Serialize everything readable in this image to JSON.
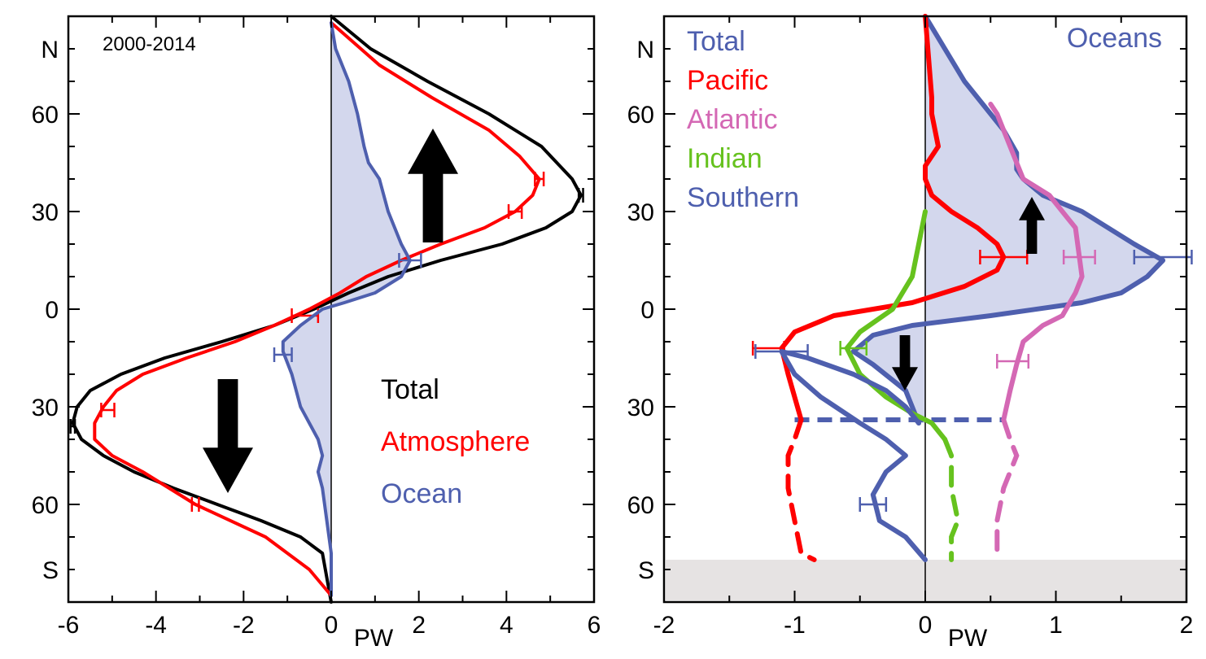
{
  "chart_data": [
    {
      "type": "line",
      "title": "",
      "annotation": "2000-2014",
      "xlabel": "PW",
      "ylabel": "",
      "xlim": [
        -6,
        6
      ],
      "ylim": [
        -90,
        90
      ],
      "x_ticks": [
        -6,
        -4,
        -2,
        0,
        2,
        4,
        6
      ],
      "y_ticks": [
        {
          "value": 80,
          "label": "N"
        },
        {
          "value": 60,
          "label": "60"
        },
        {
          "value": 30,
          "label": "30"
        },
        {
          "value": 0,
          "label": "0"
        },
        {
          "value": -30,
          "label": "30"
        },
        {
          "value": -60,
          "label": "60"
        },
        {
          "value": -80,
          "label": "S"
        }
      ],
      "legend_position": "lower-right",
      "series": [
        {
          "name": "Total",
          "color": "#000000",
          "points": [
            [
              0,
              90
            ],
            [
              0.9,
              80
            ],
            [
              2.2,
              70
            ],
            [
              3.6,
              60
            ],
            [
              4.8,
              50
            ],
            [
              5.5,
              40
            ],
            [
              5.7,
              35
            ],
            [
              5.5,
              30
            ],
            [
              4.9,
              25
            ],
            [
              3.9,
              20
            ],
            [
              2.5,
              15
            ],
            [
              1.3,
              10
            ],
            [
              0.4,
              5
            ],
            [
              -0.4,
              0
            ],
            [
              -1.3,
              -5
            ],
            [
              -2.5,
              -10
            ],
            [
              -3.8,
              -15
            ],
            [
              -4.8,
              -20
            ],
            [
              -5.5,
              -25
            ],
            [
              -5.8,
              -30
            ],
            [
              -5.9,
              -35
            ],
            [
              -5.7,
              -40
            ],
            [
              -5.2,
              -45
            ],
            [
              -4.5,
              -50
            ],
            [
              -3.6,
              -55
            ],
            [
              -2.6,
              -60
            ],
            [
              -1.6,
              -65
            ],
            [
              -0.7,
              -70
            ],
            [
              -0.2,
              -75
            ],
            [
              0,
              -90
            ]
          ],
          "errorbars": [
            {
              "x": 5.7,
              "y": 35,
              "xerr": 0.05
            },
            {
              "x": -5.9,
              "y": -36,
              "xerr": 0.05
            }
          ]
        },
        {
          "name": "Atmosphere",
          "color": "#ff0000",
          "points": [
            [
              0,
              88
            ],
            [
              1.1,
              75
            ],
            [
              2.3,
              65
            ],
            [
              3.6,
              55
            ],
            [
              4.3,
              47
            ],
            [
              4.75,
              40
            ],
            [
              4.6,
              35
            ],
            [
              4.2,
              30
            ],
            [
              3.5,
              25
            ],
            [
              2.5,
              20
            ],
            [
              1.6,
              15
            ],
            [
              0.8,
              10
            ],
            [
              0.2,
              5
            ],
            [
              -0.5,
              0
            ],
            [
              -1.3,
              -5
            ],
            [
              -2.2,
              -10
            ],
            [
              -3.3,
              -15
            ],
            [
              -4.3,
              -20
            ],
            [
              -4.9,
              -25
            ],
            [
              -5.2,
              -30
            ],
            [
              -5.4,
              -35
            ],
            [
              -5.4,
              -40
            ],
            [
              -5.0,
              -45
            ],
            [
              -4.3,
              -50
            ],
            [
              -3.1,
              -60
            ],
            [
              -1.5,
              -70
            ],
            [
              -0.5,
              -80
            ],
            [
              0,
              -88
            ]
          ],
          "errorbars": [
            {
              "x": 4.75,
              "y": 40,
              "xerr": 0.1
            },
            {
              "x": 4.2,
              "y": 30,
              "xerr": 0.15
            },
            {
              "x": -0.6,
              "y": -2,
              "xerr": 0.3
            },
            {
              "x": -5.1,
              "y": -31,
              "xerr": 0.15
            },
            {
              "x": -3.1,
              "y": -60,
              "xerr": 0.08
            }
          ]
        },
        {
          "name": "Ocean",
          "color": "#4e5fae",
          "fill": "#c8cde8",
          "points": [
            [
              0,
              88
            ],
            [
              0.1,
              80
            ],
            [
              0.4,
              70
            ],
            [
              0.6,
              60
            ],
            [
              0.75,
              50
            ],
            [
              0.85,
              45
            ],
            [
              1.1,
              40
            ],
            [
              1.3,
              30
            ],
            [
              1.6,
              20
            ],
            [
              1.8,
              15
            ],
            [
              1.6,
              10
            ],
            [
              1.0,
              5
            ],
            [
              0.3,
              2
            ],
            [
              -0.2,
              0
            ],
            [
              -0.7,
              -5
            ],
            [
              -1.1,
              -10
            ],
            [
              -1.1,
              -13
            ],
            [
              -0.9,
              -20
            ],
            [
              -0.7,
              -30
            ],
            [
              -0.5,
              -35
            ],
            [
              -0.3,
              -40
            ],
            [
              -0.2,
              -45
            ],
            [
              -0.3,
              -50
            ],
            [
              -0.2,
              -55
            ],
            [
              -0.1,
              -65
            ],
            [
              0,
              -75
            ],
            [
              0,
              -88
            ]
          ],
          "errorbars": [
            {
              "x": 1.8,
              "y": 15,
              "xerr": 0.25
            },
            {
              "x": -1.1,
              "y": -14,
              "xerr": 0.2
            }
          ]
        }
      ]
    },
    {
      "type": "line",
      "title": "Oceans",
      "xlabel": "PW",
      "ylabel": "",
      "xlim": [
        -2,
        2
      ],
      "ylim": [
        -90,
        90
      ],
      "x_ticks": [
        -2,
        -1,
        0,
        1,
        2
      ],
      "y_ticks": [
        {
          "value": 80,
          "label": "N"
        },
        {
          "value": 60,
          "label": "60"
        },
        {
          "value": 30,
          "label": "30"
        },
        {
          "value": 0,
          "label": "0"
        },
        {
          "value": -30,
          "label": "30"
        },
        {
          "value": -60,
          "label": "60"
        },
        {
          "value": -80,
          "label": "S"
        }
      ],
      "legend_position": "top-left",
      "dashed_line_lat": -34,
      "series": [
        {
          "name": "Total",
          "color": "#4e5fae",
          "fill": "#c8cde8",
          "points": [
            [
              -0.05,
              -35
            ],
            [
              -0.15,
              -25
            ],
            [
              -0.4,
              -17
            ],
            [
              -0.55,
              -13
            ],
            [
              -0.4,
              -8
            ],
            [
              -0.1,
              -5
            ],
            [
              0.5,
              -2
            ],
            [
              1.2,
              2
            ],
            [
              1.5,
              5
            ],
            [
              1.7,
              10
            ],
            [
              1.82,
              15
            ],
            [
              1.6,
              20
            ],
            [
              1.4,
              25
            ],
            [
              1.2,
              30
            ],
            [
              0.9,
              35
            ],
            [
              0.75,
              40
            ],
            [
              0.7,
              43
            ],
            [
              0.7,
              48
            ],
            [
              0.6,
              55
            ],
            [
              0.5,
              60
            ],
            [
              0.3,
              70
            ],
            [
              0.15,
              80
            ],
            [
              0,
              90
            ]
          ],
          "errorbars": [
            {
              "x": 1.82,
              "y": 16,
              "xerr": 0.22
            }
          ]
        },
        {
          "name": "Pacific",
          "color": "#ff0000",
          "points": [
            [
              -0.95,
              -34
            ],
            [
              -1.0,
              -27
            ],
            [
              -1.05,
              -20
            ],
            [
              -1.1,
              -12
            ],
            [
              -1.0,
              -7
            ],
            [
              -0.7,
              -2
            ],
            [
              -0.1,
              2
            ],
            [
              0.3,
              7
            ],
            [
              0.55,
              12
            ],
            [
              0.6,
              16
            ],
            [
              0.55,
              20
            ],
            [
              0.4,
              25
            ],
            [
              0.2,
              30
            ],
            [
              0.05,
              35
            ],
            [
              0,
              40
            ],
            [
              0,
              44
            ],
            [
              0.1,
              50
            ],
            [
              0.05,
              60
            ],
            [
              0.05,
              65
            ],
            [
              0,
              90
            ]
          ],
          "dashed_points": [
            [
              -0.95,
              -34
            ],
            [
              -1.0,
              -40
            ],
            [
              -1.05,
              -45
            ],
            [
              -1.05,
              -55
            ],
            [
              -1.0,
              -65
            ],
            [
              -0.95,
              -75
            ],
            [
              -0.85,
              -77
            ]
          ],
          "errorbars": [
            {
              "x": 0.6,
              "y": 16,
              "xerr": 0.18
            },
            {
              "x": -1.2,
              "y": -12,
              "xerr": 0.12
            }
          ]
        },
        {
          "name": "Atlantic",
          "color": "#d468b4",
          "points": [
            [
              0.6,
              -34
            ],
            [
              0.65,
              -25
            ],
            [
              0.7,
              -17
            ],
            [
              0.75,
              -10
            ],
            [
              0.9,
              -5
            ],
            [
              1.05,
              -2
            ],
            [
              1.15,
              5
            ],
            [
              1.2,
              10
            ],
            [
              1.18,
              16
            ],
            [
              1.15,
              25
            ],
            [
              1.05,
              30
            ],
            [
              0.95,
              35
            ],
            [
              0.75,
              40
            ],
            [
              0.7,
              45
            ],
            [
              0.65,
              50
            ],
            [
              0.55,
              60
            ],
            [
              0.5,
              63
            ]
          ],
          "dashed_points": [
            [
              0.6,
              -34
            ],
            [
              0.65,
              -40
            ],
            [
              0.7,
              -45
            ],
            [
              0.65,
              -50
            ],
            [
              0.6,
              -55
            ],
            [
              0.55,
              -65
            ],
            [
              0.55,
              -77
            ]
          ],
          "errorbars": [
            {
              "x": 1.18,
              "y": 16,
              "xerr": 0.12
            },
            {
              "x": 0.67,
              "y": -16,
              "xerr": 0.12
            }
          ]
        },
        {
          "name": "Indian",
          "color": "#66c21e",
          "points": [
            [
              0,
              30
            ],
            [
              -0.05,
              20
            ],
            [
              -0.1,
              10
            ],
            [
              -0.25,
              0
            ],
            [
              -0.5,
              -7
            ],
            [
              -0.6,
              -12
            ],
            [
              -0.5,
              -20
            ],
            [
              -0.3,
              -27
            ],
            [
              -0.1,
              -32
            ],
            [
              0.05,
              -35
            ],
            [
              0.15,
              -40
            ]
          ],
          "dashed_points": [
            [
              0.15,
              -40
            ],
            [
              0.2,
              -45
            ],
            [
              0.2,
              -55
            ],
            [
              0.25,
              -65
            ],
            [
              0.2,
              -70
            ],
            [
              0.2,
              -77
            ]
          ],
          "errorbars": [
            {
              "x": -0.55,
              "y": -12,
              "xerr": 0.1
            }
          ]
        },
        {
          "name": "Southern",
          "color": "#4e5fae",
          "points": [
            [
              -0.05,
              -35
            ],
            [
              -0.15,
              -30
            ],
            [
              -0.3,
              -25
            ],
            [
              -0.55,
              -20
            ],
            [
              -0.9,
              -15
            ],
            [
              -1.1,
              -13
            ],
            [
              -1.0,
              -20
            ],
            [
              -0.8,
              -27
            ],
            [
              -0.5,
              -35
            ],
            [
              -0.3,
              -40
            ],
            [
              -0.15,
              -45
            ],
            [
              -0.3,
              -50
            ],
            [
              -0.4,
              -57
            ],
            [
              -0.35,
              -65
            ],
            [
              -0.15,
              -70
            ],
            [
              0,
              -77
            ]
          ],
          "errorbars": [
            {
              "x": -1.1,
              "y": -13,
              "xerr": 0.2
            },
            {
              "x": -0.4,
              "y": -60,
              "xerr": 0.1
            }
          ]
        }
      ]
    }
  ]
}
